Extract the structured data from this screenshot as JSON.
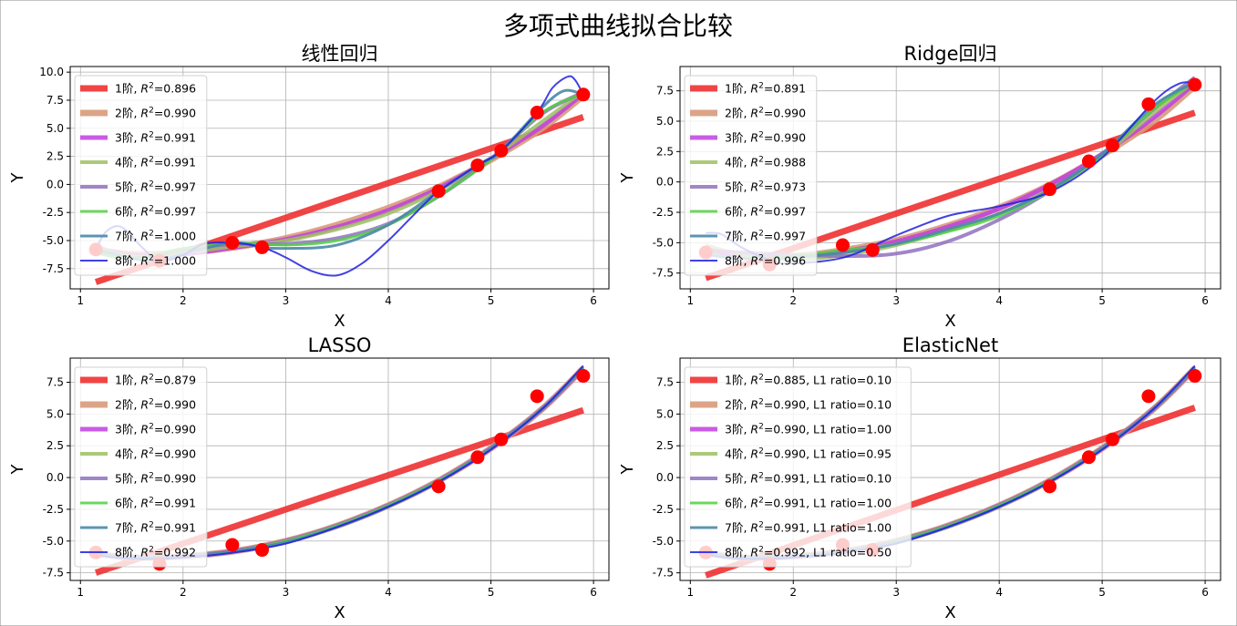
{
  "figure": {
    "title": "多项式曲线拟合比较"
  },
  "colors": {
    "degree": [
      "#f03030",
      "#d89a7a",
      "#bf40e0",
      "#9cc060",
      "#9070c0",
      "#50d040",
      "#4a88a8",
      "#2020e0"
    ],
    "points": "#ff0000",
    "grid": "#b0b0b0"
  },
  "chart_data": [
    {
      "type": "line",
      "title": "线性回归",
      "xlabel": "X",
      "ylabel": "Y",
      "xlim": [
        0.9,
        6.15
      ],
      "ylim": [
        -9.3,
        10.5
      ],
      "xticks": [
        "1",
        "2",
        "3",
        "4",
        "5",
        "6"
      ],
      "yticks": [
        "-7.5",
        "-5.0",
        "-2.5",
        "0.0",
        "2.5",
        "5.0",
        "7.5",
        "10.0"
      ],
      "grid": true,
      "legend_position": "upper-left",
      "points": {
        "x": [
          1.15,
          1.77,
          2.48,
          2.77,
          4.49,
          4.87,
          5.1,
          5.45,
          5.9
        ],
        "y": [
          -5.8,
          -6.8,
          -5.2,
          -5.6,
          -0.6,
          1.7,
          3.0,
          6.4,
          8.0
        ]
      },
      "series": [
        {
          "label": "1阶, R²=0.896",
          "x": [
            1.15,
            5.9
          ],
          "y": [
            -8.7,
            6.0
          ]
        },
        {
          "label": "2阶, R²=0.990",
          "x": [
            1.15,
            1.5,
            2.0,
            2.5,
            3.0,
            3.5,
            4.0,
            4.5,
            5.0,
            5.5,
            5.9
          ],
          "y": [
            -5.8,
            -6.2,
            -6.1,
            -5.6,
            -4.8,
            -3.6,
            -2.1,
            -0.2,
            2.2,
            5.0,
            7.9
          ]
        },
        {
          "label": "3阶, R²=0.991",
          "x": [
            1.15,
            1.5,
            2.0,
            2.5,
            3.0,
            3.5,
            4.0,
            4.5,
            5.0,
            5.5,
            5.9
          ],
          "y": [
            -5.6,
            -6.3,
            -6.2,
            -5.6,
            -4.9,
            -3.8,
            -2.3,
            -0.3,
            2.3,
            5.2,
            8.1
          ]
        },
        {
          "label": "4阶, R²=0.991",
          "x": [
            1.15,
            1.5,
            2.0,
            2.5,
            3.0,
            3.5,
            4.0,
            4.5,
            5.0,
            5.5,
            5.9
          ],
          "y": [
            -5.5,
            -6.4,
            -6.1,
            -5.5,
            -5.0,
            -4.0,
            -2.6,
            -0.5,
            2.3,
            5.6,
            8.3
          ]
        },
        {
          "label": "5阶, R²=0.997",
          "x": [
            1.15,
            1.5,
            2.0,
            2.5,
            3.0,
            3.5,
            4.0,
            4.5,
            5.0,
            5.5,
            5.9
          ],
          "y": [
            -6.0,
            -6.6,
            -5.8,
            -5.3,
            -5.3,
            -4.8,
            -3.5,
            -1.0,
            2.3,
            6.3,
            8.2
          ]
        },
        {
          "label": "6阶, R²=0.997",
          "x": [
            1.15,
            1.5,
            2.0,
            2.5,
            3.0,
            3.5,
            4.0,
            4.5,
            5.0,
            5.5,
            5.9
          ],
          "y": [
            -6.1,
            -6.6,
            -5.7,
            -5.2,
            -5.4,
            -5.0,
            -3.6,
            -1.0,
            2.2,
            6.4,
            8.1
          ]
        },
        {
          "label": "7阶, R²=1.000",
          "x": [
            1.15,
            1.3,
            1.5,
            1.77,
            2.0,
            2.48,
            2.77,
            3.0,
            3.5,
            4.0,
            4.49,
            4.87,
            5.1,
            5.45,
            5.7,
            5.9
          ],
          "y": [
            -5.8,
            -6.1,
            -6.6,
            -6.8,
            -6.2,
            -5.2,
            -5.6,
            -5.7,
            -5.4,
            -3.6,
            -0.6,
            1.7,
            3.0,
            6.4,
            8.3,
            8.0
          ]
        },
        {
          "label": "8阶, R²=1.000",
          "x": [
            1.15,
            1.25,
            1.4,
            1.6,
            1.77,
            2.0,
            2.2,
            2.48,
            2.77,
            3.0,
            3.25,
            3.5,
            3.75,
            4.0,
            4.25,
            4.49,
            4.87,
            5.1,
            5.45,
            5.6,
            5.75,
            5.82,
            5.9
          ],
          "y": [
            -5.8,
            -4.2,
            -3.8,
            -5.6,
            -6.8,
            -6.3,
            -5.3,
            -5.2,
            -5.6,
            -6.5,
            -7.7,
            -8.1,
            -7.0,
            -5.0,
            -2.7,
            -0.6,
            1.7,
            3.0,
            6.4,
            8.6,
            9.6,
            9.3,
            8.0
          ]
        }
      ]
    },
    {
      "type": "line",
      "title": "Ridge回归",
      "xlabel": "X",
      "ylabel": "Y",
      "xlim": [
        0.9,
        6.15
      ],
      "ylim": [
        -8.8,
        9.5
      ],
      "xticks": [
        "1",
        "2",
        "3",
        "4",
        "5",
        "6"
      ],
      "yticks": [
        "-7.5",
        "-5.0",
        "-2.5",
        "0.0",
        "2.5",
        "5.0",
        "7.5"
      ],
      "grid": true,
      "legend_position": "upper-left",
      "points": {
        "x": [
          1.15,
          1.77,
          2.48,
          2.77,
          4.49,
          4.87,
          5.1,
          5.45,
          5.9
        ],
        "y": [
          -5.8,
          -6.8,
          -5.2,
          -5.6,
          -0.6,
          1.7,
          3.0,
          6.4,
          8.0
        ]
      },
      "series": [
        {
          "label": "1阶, R²=0.891",
          "x": [
            1.15,
            5.9
          ],
          "y": [
            -7.9,
            5.7
          ]
        },
        {
          "label": "2阶, R²=0.990",
          "x": [
            1.15,
            1.5,
            2.0,
            2.5,
            3.0,
            3.5,
            4.0,
            4.5,
            5.0,
            5.5,
            5.9
          ],
          "y": [
            -5.6,
            -6.0,
            -6.1,
            -5.6,
            -4.8,
            -3.6,
            -2.1,
            -0.2,
            2.2,
            5.0,
            7.9
          ]
        },
        {
          "label": "3阶, R²=0.990",
          "x": [
            1.15,
            1.5,
            2.0,
            2.5,
            3.0,
            3.5,
            4.0,
            4.5,
            5.0,
            5.5,
            5.9
          ],
          "y": [
            -5.5,
            -6.1,
            -6.2,
            -5.7,
            -4.9,
            -3.7,
            -2.2,
            -0.2,
            2.3,
            5.3,
            8.1
          ]
        },
        {
          "label": "4阶, R²=0.988",
          "x": [
            1.15,
            1.5,
            2.0,
            2.5,
            3.0,
            3.5,
            4.0,
            4.5,
            5.0,
            5.5,
            5.9
          ],
          "y": [
            -5.2,
            -6.0,
            -6.4,
            -6.0,
            -5.2,
            -4.0,
            -2.6,
            -0.6,
            2.1,
            5.7,
            8.3
          ]
        },
        {
          "label": "5阶, R²=0.973",
          "x": [
            1.15,
            1.5,
            2.0,
            2.5,
            3.0,
            3.5,
            4.0,
            4.5,
            5.0,
            5.5,
            5.9
          ],
          "y": [
            -5.6,
            -5.8,
            -6.0,
            -6.1,
            -5.9,
            -4.9,
            -3.1,
            -0.7,
            2.3,
            6.0,
            8.6
          ]
        },
        {
          "label": "6阶, R²=0.997",
          "x": [
            1.15,
            1.5,
            2.0,
            2.5,
            3.0,
            3.5,
            4.0,
            4.5,
            5.0,
            5.5,
            5.9
          ],
          "y": [
            -5.9,
            -6.3,
            -6.1,
            -5.6,
            -5.1,
            -4.1,
            -2.8,
            -0.7,
            2.2,
            6.0,
            8.2
          ]
        },
        {
          "label": "7阶, R²=0.997",
          "x": [
            1.15,
            1.5,
            2.0,
            2.5,
            3.0,
            3.5,
            4.0,
            4.5,
            5.0,
            5.5,
            5.9
          ],
          "y": [
            -6.0,
            -6.3,
            -6.2,
            -5.8,
            -5.1,
            -3.9,
            -2.6,
            -0.6,
            2.3,
            6.3,
            8.2
          ]
        },
        {
          "label": "8阶, R²=0.996",
          "x": [
            1.15,
            1.3,
            1.5,
            1.8,
            2.0,
            2.5,
            3.0,
            3.5,
            4.0,
            4.5,
            5.0,
            5.5,
            5.75,
            5.9
          ],
          "y": [
            -4.2,
            -4.3,
            -5.4,
            -6.5,
            -6.7,
            -6.2,
            -4.4,
            -2.8,
            -2.0,
            -0.8,
            2.0,
            6.6,
            8.1,
            8.1
          ]
        }
      ]
    },
    {
      "type": "line",
      "title": "LASSO",
      "xlabel": "X",
      "ylabel": "Y",
      "xlim": [
        0.9,
        6.15
      ],
      "ylim": [
        -8.1,
        9.4
      ],
      "xticks": [
        "1",
        "2",
        "3",
        "4",
        "5",
        "6"
      ],
      "yticks": [
        "-7.5",
        "-5.0",
        "-2.5",
        "0.0",
        "2.5",
        "5.0",
        "7.5"
      ],
      "grid": true,
      "legend_position": "upper-left",
      "points": {
        "x": [
          1.15,
          1.77,
          2.48,
          2.77,
          4.49,
          4.87,
          5.1,
          5.45,
          5.9
        ],
        "y": [
          -5.9,
          -6.8,
          -5.3,
          -5.7,
          -0.7,
          1.6,
          3.0,
          6.4,
          8.0
        ]
      },
      "series": [
        {
          "label": "1阶, R²=0.879",
          "x": [
            1.15,
            5.9
          ],
          "y": [
            -7.5,
            5.3
          ]
        },
        {
          "label": "2阶, R²=0.990",
          "x": [
            1.15,
            1.5,
            2.0,
            2.5,
            3.0,
            3.5,
            4.0,
            4.5,
            5.0,
            5.5,
            5.9
          ],
          "y": [
            -6.0,
            -6.3,
            -6.2,
            -5.8,
            -5.0,
            -3.8,
            -2.2,
            -0.2,
            2.3,
            5.4,
            8.6
          ]
        },
        {
          "label": "3阶, R²=0.990",
          "x": [
            1.15,
            1.5,
            2.0,
            2.5,
            3.0,
            3.5,
            4.0,
            4.5,
            5.0,
            5.5,
            5.9
          ],
          "y": [
            -6.0,
            -6.3,
            -6.2,
            -5.8,
            -5.0,
            -3.8,
            -2.2,
            -0.2,
            2.3,
            5.4,
            8.6
          ]
        },
        {
          "label": "4阶, R²=0.990",
          "x": [
            1.15,
            1.5,
            2.0,
            2.5,
            3.0,
            3.5,
            4.0,
            4.5,
            5.0,
            5.5,
            5.9
          ],
          "y": [
            -6.0,
            -6.3,
            -6.2,
            -5.8,
            -5.0,
            -3.8,
            -2.2,
            -0.2,
            2.3,
            5.4,
            8.6
          ]
        },
        {
          "label": "5阶, R²=0.990",
          "x": [
            1.15,
            1.5,
            2.0,
            2.5,
            3.0,
            3.5,
            4.0,
            4.5,
            5.0,
            5.5,
            5.9
          ],
          "y": [
            -6.0,
            -6.3,
            -6.2,
            -5.8,
            -5.0,
            -3.8,
            -2.2,
            -0.2,
            2.3,
            5.4,
            8.6
          ]
        },
        {
          "label": "6阶, R²=0.991",
          "x": [
            1.15,
            1.5,
            2.0,
            2.5,
            3.0,
            3.5,
            4.0,
            4.5,
            5.0,
            5.5,
            5.9
          ],
          "y": [
            -6.0,
            -6.3,
            -6.2,
            -5.8,
            -5.0,
            -3.8,
            -2.2,
            -0.2,
            2.3,
            5.4,
            8.7
          ]
        },
        {
          "label": "7阶, R²=0.991",
          "x": [
            1.15,
            1.5,
            2.0,
            2.5,
            3.0,
            3.5,
            4.0,
            4.5,
            5.0,
            5.5,
            5.9
          ],
          "y": [
            -6.0,
            -6.3,
            -6.2,
            -5.8,
            -5.1,
            -3.9,
            -2.3,
            -0.3,
            2.3,
            5.4,
            8.7
          ]
        },
        {
          "label": "8阶, R²=0.992",
          "x": [
            1.15,
            1.5,
            2.0,
            2.5,
            3.0,
            3.5,
            4.0,
            4.5,
            5.0,
            5.5,
            5.9
          ],
          "y": [
            -6.1,
            -6.4,
            -6.3,
            -5.9,
            -5.2,
            -3.9,
            -2.3,
            -0.3,
            2.2,
            5.4,
            8.8
          ]
        }
      ]
    },
    {
      "type": "line",
      "title": "ElasticNet",
      "xlabel": "X",
      "ylabel": "Y",
      "xlim": [
        0.9,
        6.15
      ],
      "ylim": [
        -8.1,
        9.4
      ],
      "xticks": [
        "1",
        "2",
        "3",
        "4",
        "5",
        "6"
      ],
      "yticks": [
        "-7.5",
        "-5.0",
        "-2.5",
        "0.0",
        "2.5",
        "5.0",
        "7.5"
      ],
      "grid": true,
      "legend_position": "upper-left",
      "points": {
        "x": [
          1.15,
          1.77,
          2.48,
          2.77,
          4.49,
          4.87,
          5.1,
          5.45,
          5.9
        ],
        "y": [
          -5.9,
          -6.8,
          -5.3,
          -5.7,
          -0.7,
          1.6,
          3.0,
          6.4,
          8.0
        ]
      },
      "series": [
        {
          "label": "1阶, R²=0.885, L1 ratio=0.10",
          "x": [
            1.15,
            5.9
          ],
          "y": [
            -7.7,
            5.5
          ]
        },
        {
          "label": "2阶, R²=0.990, L1 ratio=0.10",
          "x": [
            1.15,
            1.5,
            2.0,
            2.5,
            3.0,
            3.5,
            4.0,
            4.5,
            5.0,
            5.5,
            5.9
          ],
          "y": [
            -5.9,
            -6.3,
            -6.2,
            -5.8,
            -5.0,
            -3.8,
            -2.2,
            -0.2,
            2.3,
            5.4,
            8.6
          ]
        },
        {
          "label": "3阶, R²=0.990, L1 ratio=1.00",
          "x": [
            1.15,
            1.5,
            2.0,
            2.5,
            3.0,
            3.5,
            4.0,
            4.5,
            5.0,
            5.5,
            5.9
          ],
          "y": [
            -6.0,
            -6.3,
            -6.2,
            -5.8,
            -5.0,
            -3.8,
            -2.2,
            -0.2,
            2.3,
            5.4,
            8.6
          ]
        },
        {
          "label": "4阶, R²=0.990, L1 ratio=0.95",
          "x": [
            1.15,
            1.5,
            2.0,
            2.5,
            3.0,
            3.5,
            4.0,
            4.5,
            5.0,
            5.5,
            5.9
          ],
          "y": [
            -6.0,
            -6.3,
            -6.2,
            -5.8,
            -5.0,
            -3.8,
            -2.2,
            -0.2,
            2.3,
            5.4,
            8.6
          ]
        },
        {
          "label": "5阶, R²=0.991, L1 ratio=0.10",
          "x": [
            1.15,
            1.5,
            2.0,
            2.5,
            3.0,
            3.5,
            4.0,
            4.5,
            5.0,
            5.5,
            5.9
          ],
          "y": [
            -6.0,
            -6.3,
            -6.2,
            -5.8,
            -5.0,
            -3.8,
            -2.2,
            -0.2,
            2.3,
            5.4,
            8.6
          ]
        },
        {
          "label": "6阶, R²=0.991, L1 ratio=1.00",
          "x": [
            1.15,
            1.5,
            2.0,
            2.5,
            3.0,
            3.5,
            4.0,
            4.5,
            5.0,
            5.5,
            5.9
          ],
          "y": [
            -6.0,
            -6.3,
            -6.2,
            -5.8,
            -5.0,
            -3.8,
            -2.2,
            -0.2,
            2.3,
            5.4,
            8.7
          ]
        },
        {
          "label": "7阶, R²=0.991, L1 ratio=1.00",
          "x": [
            1.15,
            1.5,
            2.0,
            2.5,
            3.0,
            3.5,
            4.0,
            4.5,
            5.0,
            5.5,
            5.9
          ],
          "y": [
            -6.0,
            -6.3,
            -6.2,
            -5.8,
            -5.1,
            -3.9,
            -2.3,
            -0.3,
            2.3,
            5.4,
            8.7
          ]
        },
        {
          "label": "8阶, R²=0.992, L1 ratio=0.50",
          "x": [
            1.15,
            1.5,
            2.0,
            2.5,
            3.0,
            3.5,
            4.0,
            4.5,
            5.0,
            5.5,
            5.9
          ],
          "y": [
            -6.1,
            -6.4,
            -6.3,
            -5.9,
            -5.2,
            -3.9,
            -2.3,
            -0.3,
            2.2,
            5.4,
            8.8
          ]
        }
      ]
    }
  ]
}
